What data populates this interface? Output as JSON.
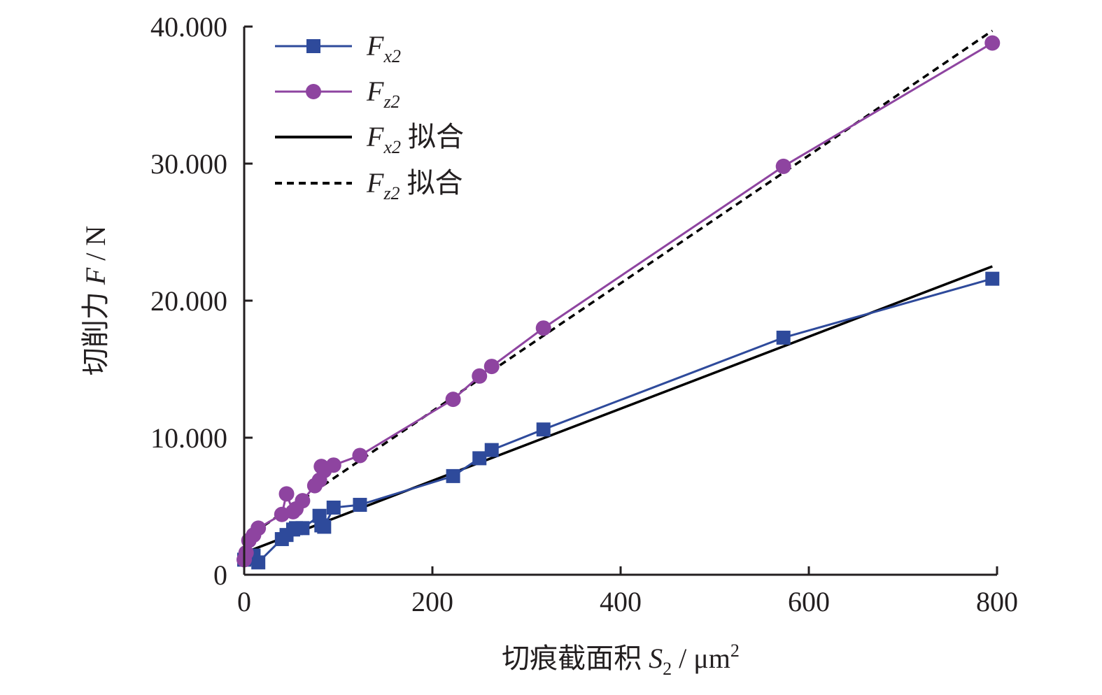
{
  "chart_data": {
    "type": "line",
    "title": "",
    "xlabel": "切痕截面积 S2 / μm²",
    "ylabel": "切削力 F / N",
    "xlabel_parts": {
      "text": "切痕截面积 ",
      "var": "S",
      "sub": "2",
      "unit": " / μm",
      "sup": "2"
    },
    "ylabel_parts": {
      "text": "切削力 ",
      "var": "F",
      "unit": " / N"
    },
    "xlim": [
      0,
      800
    ],
    "ylim": [
      0,
      40
    ],
    "xticks": [
      0,
      200,
      400,
      600,
      800
    ],
    "xtick_labels": [
      "0",
      "200",
      "400",
      "600",
      "800"
    ],
    "yticks": [
      0,
      10,
      20,
      30,
      40
    ],
    "ytick_labels": [
      "0",
      "10.000",
      "20.000",
      "30.000",
      "40.000"
    ],
    "grid": false,
    "legend_position": "top-left",
    "series": [
      {
        "name": "Fx2",
        "label_var": "F",
        "label_sub": "x2",
        "label_suffix": "",
        "kind": "marker-line",
        "marker": "square",
        "color": "#2e4a9b",
        "x": [
          0,
          2,
          5,
          10,
          15,
          40,
          45,
          52,
          55,
          62,
          80,
          82,
          85,
          95,
          123,
          222,
          250,
          263,
          318,
          573,
          795
        ],
        "y": [
          1.1,
          1.3,
          1.2,
          1.4,
          0.9,
          2.6,
          2.9,
          3.3,
          3.4,
          3.4,
          4.3,
          3.6,
          3.5,
          4.9,
          5.1,
          7.2,
          8.5,
          9.1,
          10.6,
          17.3,
          21.6
        ]
      },
      {
        "name": "Fz2",
        "label_var": "F",
        "label_sub": "z2",
        "label_suffix": "",
        "kind": "marker-line",
        "marker": "circle",
        "color": "#8e44a0",
        "x": [
          0,
          2,
          5,
          10,
          15,
          40,
          45,
          52,
          55,
          62,
          75,
          80,
          82,
          85,
          95,
          123,
          222,
          250,
          263,
          318,
          573,
          795
        ],
        "y": [
          1.1,
          1.6,
          2.5,
          2.9,
          3.4,
          4.4,
          5.9,
          4.6,
          4.8,
          5.4,
          6.5,
          6.9,
          7.9,
          7.6,
          8.0,
          8.7,
          12.8,
          14.5,
          15.2,
          18.0,
          29.8,
          38.8
        ]
      },
      {
        "name": "Fx2 拟合",
        "label_var": "F",
        "label_sub": "x2",
        "label_suffix": " 拟合",
        "kind": "fit",
        "dash": "solid",
        "color": "#000000",
        "x": [
          0,
          795
        ],
        "y": [
          1.6,
          22.5
        ]
      },
      {
        "name": "Fz2 拟合",
        "label_var": "F",
        "label_sub": "z2",
        "label_suffix": " 拟合",
        "kind": "fit",
        "dash": "dashed",
        "color": "#000000",
        "x": [
          0,
          795
        ],
        "y": [
          2.6,
          39.7
        ]
      }
    ]
  }
}
